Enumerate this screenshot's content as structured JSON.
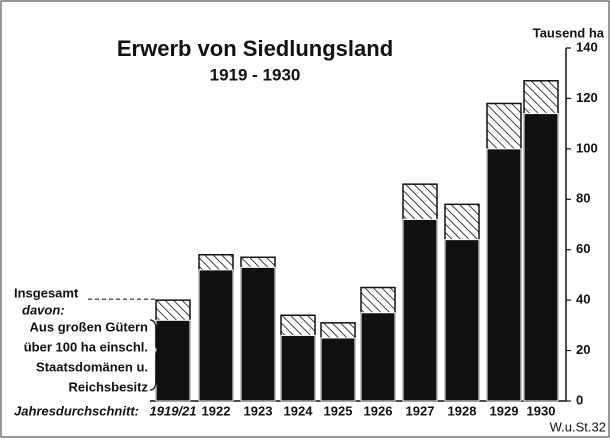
{
  "chart_data": {
    "type": "bar",
    "title": "Erwerb von Siedlungsland",
    "subtitle": "1919 - 1930",
    "y_axis_label": "Tausend ha",
    "category_prefix": "Jahresdurchschnitt:",
    "legend_intro": "davon:",
    "source": "W.u.St.32",
    "categories": [
      "1919/21",
      "1922",
      "1923",
      "1924",
      "1925",
      "1926",
      "1927",
      "1928",
      "1929",
      "1930"
    ],
    "series": [
      {
        "name": "Insgesamt",
        "color": "#111111",
        "pattern": "hatch",
        "values": [
          40,
          58,
          57,
          34,
          31,
          45,
          86,
          78,
          118,
          127
        ]
      },
      {
        "name": [
          "Aus großen Gütern",
          "über 100 ha einschl.",
          "Staatsdomänen u.",
          "Reichsbesitz"
        ],
        "color": "#111111",
        "pattern": "solid",
        "values": [
          32,
          52,
          53,
          26,
          25,
          35,
          72,
          64,
          100,
          114
        ]
      }
    ],
    "ylim": [
      0,
      140
    ],
    "yticks": [
      0,
      20,
      40,
      60,
      80,
      100,
      120,
      140
    ],
    "grid": false
  }
}
